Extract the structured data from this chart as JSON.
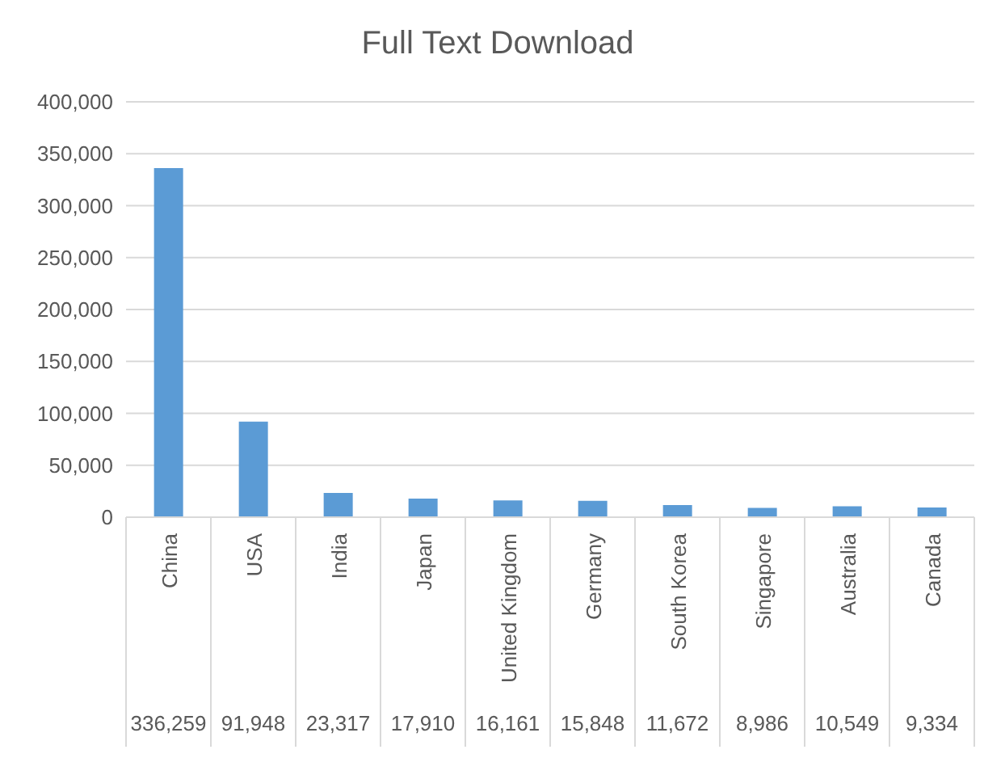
{
  "chart_data": {
    "type": "bar",
    "title": "Full Text Download",
    "categories": [
      "China",
      "USA",
      "India",
      "Japan",
      "United Kingdom",
      "Germany",
      "South Korea",
      "Singapore",
      "Australia",
      "Canada"
    ],
    "values": [
      336259,
      91948,
      23317,
      17910,
      16161,
      15848,
      11672,
      8986,
      10549,
      9334
    ],
    "value_labels": [
      "336,259",
      "91,948",
      "23,317",
      "17,910",
      "16,161",
      "15,848",
      "11,672",
      "8,986",
      "10,549",
      "9,334"
    ],
    "color": "#5b9bd5",
    "ylim": [
      0,
      400000
    ],
    "yticks": [
      0,
      {
        "value": 50000,
        "label": "50,000"
      },
      {
        "value": 100000,
        "label": "100,000"
      },
      {
        "value": 150000,
        "label": "150,000"
      },
      {
        "value": 200000,
        "label": "200,000"
      },
      {
        "value": 250000,
        "label": "250,000"
      },
      {
        "value": 300000,
        "label": "300,000"
      },
      {
        "value": 350000,
        "label": "350,000"
      },
      {
        "value": 400000,
        "label": "400,000"
      }
    ],
    "grid": "y"
  }
}
